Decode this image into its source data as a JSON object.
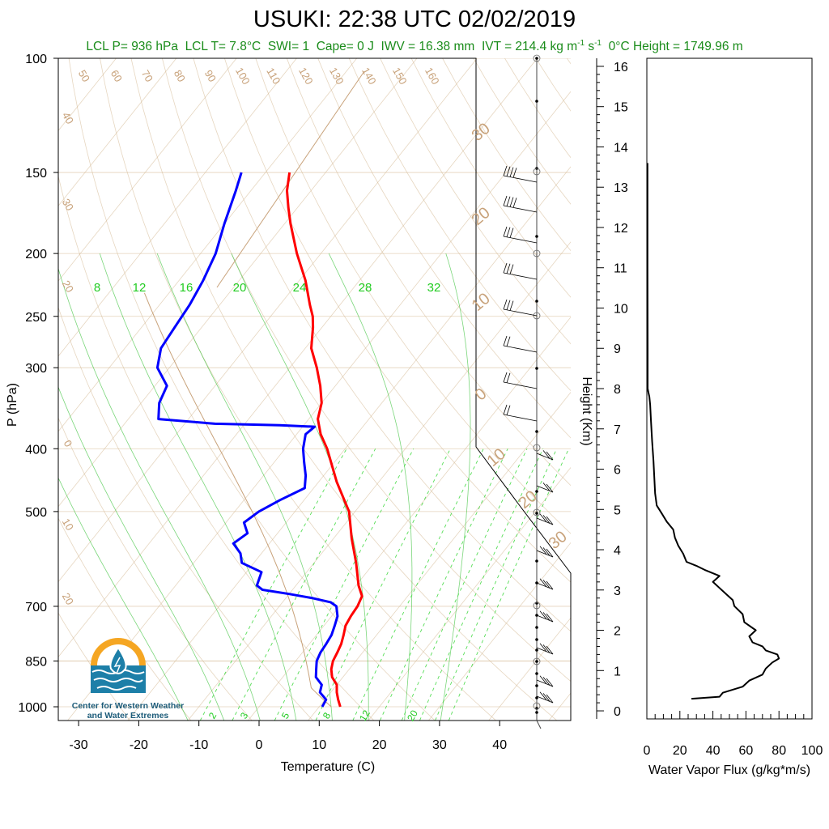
{
  "title": "USUKI: 22:38 UTC 02/02/2019",
  "stats": {
    "lcl_p": "LCL P= 936 hPa",
    "lcl_t": "LCL T= 7.8°C",
    "swi": "SWI= 1",
    "cape": "Cape= 0 J",
    "iwv": "IWV = 16.38 mm",
    "ivt_prefix": "IVT = 214.4 kg m",
    "ivt_exp1": "-1",
    "ivt_mid": " s",
    "ivt_exp2": "-1",
    "zero_height": "0°C Height = 1749.96 m"
  },
  "logo": {
    "text": "Center for Western Weather and Water Extremes"
  },
  "colors": {
    "temperature": "#ff0000",
    "dewpoint": "#0000ff",
    "dry_adiabat": "#d2b48c",
    "isotherm": "#d2b48c",
    "mixing_ratio": "#55dd55",
    "moist_adiabat": "#22bb22",
    "stats_text": "#1a8c1a",
    "logo_orange": "#f5a623",
    "logo_blue": "#1d7fa8"
  },
  "chart_data": [
    {
      "type": "line",
      "subtype": "skew-t",
      "xlabel": "Temperature (C)",
      "ylabel": "P (hPa)",
      "x_ticks": [
        "-30",
        "-20",
        "-10",
        "0",
        "10",
        "20",
        "30",
        "40"
      ],
      "y_ticks": [
        "100",
        "150",
        "200",
        "250",
        "300",
        "400",
        "500",
        "700",
        "850",
        "1000"
      ],
      "y_scale": "log",
      "ylim": [
        1050,
        100
      ],
      "mixing_ratio_top_labels": [
        "8",
        "12",
        "16",
        "20",
        "24",
        "28",
        "32"
      ],
      "mixing_ratio_bottom_labels": [
        "2",
        "3",
        "5",
        "8",
        "12",
        "20"
      ],
      "isotherm_labels": [
        "50",
        "60",
        "70",
        "80",
        "90",
        "100",
        "110",
        "120",
        "130",
        "140",
        "150",
        "160"
      ],
      "left_temp_labels": [
        "40",
        "30",
        "20",
        "0",
        "10",
        "20"
      ],
      "right_temp_labels": [
        "30",
        "20",
        "10",
        "0",
        "10",
        "20",
        "30"
      ],
      "series": [
        {
          "name": "Temperature",
          "p": [
            1000,
            975,
            950,
            925,
            900,
            875,
            850,
            825,
            800,
            775,
            750,
            725,
            700,
            675,
            650,
            600,
            550,
            500,
            450,
            400,
            380,
            360,
            340,
            320,
            300,
            280,
            260,
            250,
            240,
            220,
            200,
            180,
            170,
            160,
            150
          ],
          "t": [
            13.5,
            12.2,
            11.0,
            10.0,
            8.2,
            7.0,
            6.2,
            5.8,
            5.3,
            4.5,
            3.6,
            3.2,
            3.0,
            2.4,
            0.4,
            -3.0,
            -7.0,
            -11.0,
            -17.0,
            -23.0,
            -26.0,
            -28.5,
            -30.0,
            -32.5,
            -35.5,
            -39.0,
            -41.5,
            -43.0,
            -45.0,
            -49.0,
            -54.0,
            -59.0,
            -61.5,
            -64.0,
            -66.0
          ]
        },
        {
          "name": "Dewpoint",
          "p": [
            1000,
            975,
            950,
            925,
            900,
            875,
            850,
            825,
            800,
            775,
            750,
            725,
            700,
            690,
            680,
            670,
            660,
            650,
            620,
            600,
            580,
            560,
            540,
            520,
            500,
            480,
            460,
            440,
            420,
            400,
            380,
            370,
            368,
            366,
            360,
            340,
            320,
            300,
            280,
            260,
            240,
            220,
            200,
            180,
            160,
            150
          ],
          "t": [
            10.5,
            10.2,
            8.2,
            7.5,
            5.5,
            4.5,
            3.5,
            3.0,
            2.8,
            2.5,
            1.8,
            1.0,
            -0.5,
            -2.0,
            -5.5,
            -10.0,
            -15.0,
            -16.5,
            -17.5,
            -22.0,
            -23.5,
            -26.0,
            -25.0,
            -27.0,
            -26.0,
            -24.0,
            -21.5,
            -23.0,
            -25.0,
            -27.0,
            -28.5,
            -28.0,
            -34.0,
            -45.0,
            -55.0,
            -57.0,
            -58.0,
            -62.0,
            -64.0,
            -64.5,
            -65.0,
            -66.0,
            -67.5,
            -70.0,
            -72.5,
            -74.0
          ]
        }
      ]
    },
    {
      "type": "line",
      "xlabel": "Water Vapor Flux (g/kg*m/s)",
      "ylabel": "Height (Km)",
      "x_ticks": [
        "0",
        "20",
        "40",
        "60",
        "80",
        "100"
      ],
      "y_ticks": [
        "0",
        "1",
        "2",
        "3",
        "4",
        "5",
        "6",
        "7",
        "8",
        "9",
        "10",
        "11",
        "12",
        "13",
        "14",
        "15",
        "16"
      ],
      "xlim": [
        0,
        100
      ],
      "ylim": [
        -0.2,
        16.2
      ],
      "series": [
        {
          "name": "Water Vapor Flux",
          "height_km": [
            0.3,
            0.35,
            0.45,
            0.6,
            0.75,
            0.9,
            1.05,
            1.2,
            1.3,
            1.4,
            1.5,
            1.6,
            1.7,
            1.85,
            2.0,
            2.2,
            2.4,
            2.6,
            2.75,
            2.9,
            3.05,
            3.2,
            3.35,
            3.5,
            3.6,
            3.7,
            3.9,
            4.1,
            4.3,
            4.5,
            4.7,
            4.9,
            5.1,
            5.4,
            5.8,
            6.2,
            6.7,
            7.2,
            7.6,
            7.8,
            7.9,
            8.0,
            9.0,
            11.0,
            13.0,
            13.6
          ],
          "flux": [
            27,
            44,
            46,
            58,
            62,
            70,
            72,
            76,
            80,
            79,
            72,
            70,
            64,
            62,
            66,
            59,
            58,
            53,
            52,
            48,
            44,
            40,
            44,
            35,
            30,
            24,
            22,
            19,
            17,
            16,
            12,
            9,
            6,
            5,
            4.5,
            4,
            3.2,
            2.5,
            2.0,
            1.5,
            1.0,
            0.5,
            0.5,
            0.4,
            0.4,
            0.4
          ]
        }
      ]
    }
  ]
}
